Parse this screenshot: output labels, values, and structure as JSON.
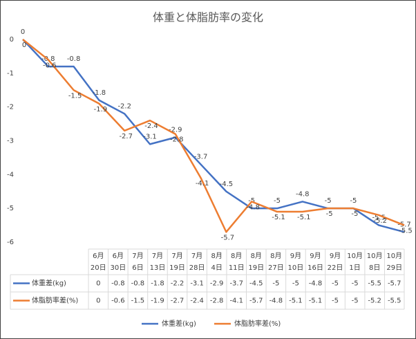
{
  "chart_data": {
    "type": "line",
    "title": "体重と体脂肪率の変化",
    "categories": [
      "6月20日",
      "6月30日",
      "7月6日",
      "7月13日",
      "7月19日",
      "7月28日",
      "8月4日",
      "8月11日",
      "8月19日",
      "8月27日",
      "9月10日",
      "9月16日",
      "9月22日",
      "10月1日",
      "10月8日",
      "10月29日"
    ],
    "series": [
      {
        "name": "体重差(kg)",
        "color": "#4472c4",
        "values": [
          0,
          -0.8,
          -0.8,
          -1.8,
          -2.2,
          -3.1,
          -2.9,
          -3.7,
          -4.5,
          -5,
          -5,
          -4.8,
          -5,
          -5,
          -5.5,
          -5.7
        ]
      },
      {
        "name": "体脂肪率差(%)",
        "color": "#ed7d31",
        "values": [
          0,
          -0.6,
          -1.5,
          -1.9,
          -2.7,
          -2.4,
          -2.8,
          -4.1,
          -5.7,
          -4.8,
          -5.1,
          -5.1,
          -5,
          -5,
          -5.2,
          -5.5
        ]
      }
    ],
    "ylim": [
      -6,
      0
    ],
    "yticks": [
      0,
      -1,
      -2,
      -3,
      -4,
      -5,
      -6
    ],
    "grid": false,
    "legend": "bottom"
  }
}
